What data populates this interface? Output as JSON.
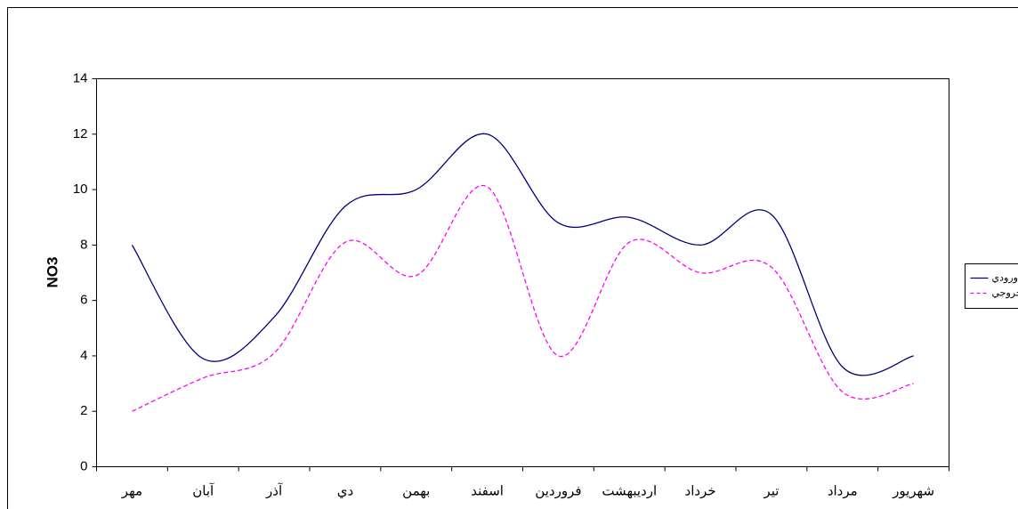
{
  "chart_data": {
    "type": "line",
    "y_label": "NO3",
    "categories": [
      "مهر",
      "آبان",
      "آذر",
      "دي",
      "بهمن",
      "اسفند",
      "فروردين",
      "ارديبهشت",
      "خرداد",
      "تير",
      "مرداد",
      "شهريور"
    ],
    "series": [
      {
        "name": "ورودي",
        "color": "#000080",
        "dash": "solid",
        "values": [
          8.0,
          3.9,
          5.4,
          9.4,
          10.0,
          12.0,
          8.8,
          9.0,
          8.0,
          9.1,
          3.6,
          4.0
        ]
      },
      {
        "name": "خروجي",
        "color": "#ff00ff",
        "dash": "dashed",
        "values": [
          2.0,
          3.2,
          4.1,
          8.1,
          6.9,
          10.1,
          4.0,
          8.1,
          7.0,
          7.2,
          2.7,
          3.0
        ]
      }
    ],
    "ylim": [
      0,
      14
    ],
    "yticks": [
      0,
      2,
      4,
      6,
      8,
      10,
      12,
      14
    ],
    "grid": false,
    "smooth": true,
    "legend": "right"
  }
}
